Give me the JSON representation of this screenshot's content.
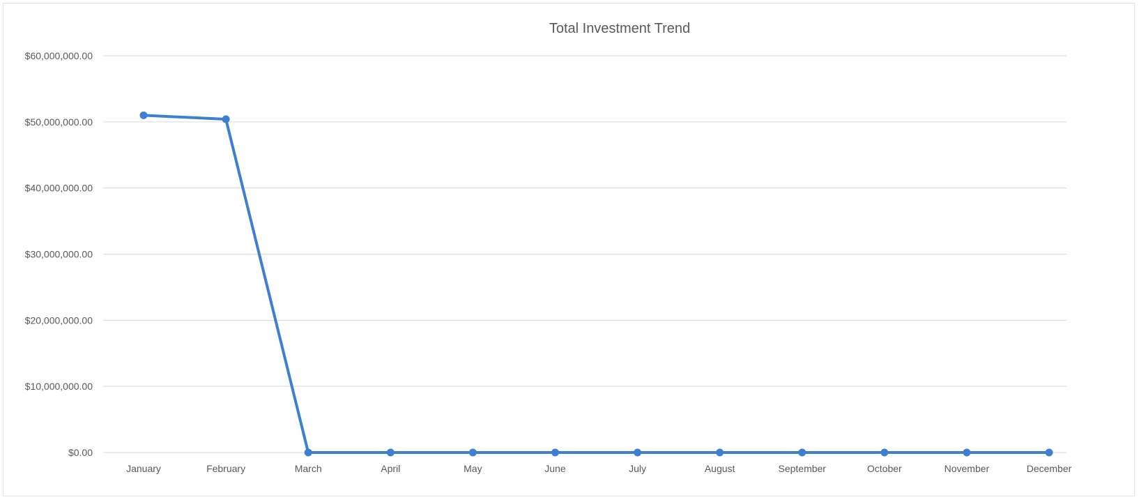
{
  "chart_data": {
    "type": "line",
    "title": "Total Investment Trend",
    "xlabel": "",
    "ylabel": "",
    "categories": [
      "January",
      "February",
      "March",
      "April",
      "May",
      "June",
      "July",
      "August",
      "September",
      "October",
      "November",
      "December"
    ],
    "series": [
      {
        "values": [
          51000000,
          50400000,
          0,
          0,
          0,
          0,
          0,
          0,
          0,
          0,
          0,
          0
        ]
      }
    ],
    "ylim": [
      0,
      60000000
    ],
    "yticks": [
      0,
      10000000,
      20000000,
      30000000,
      40000000,
      50000000,
      60000000
    ],
    "ytick_labels": [
      "$0.00",
      "$10,000,000.00",
      "$20,000,000.00",
      "$30,000,000.00",
      "$40,000,000.00",
      "$50,000,000.00",
      "$60,000,000.00"
    ],
    "grid": true,
    "legend": "none",
    "colors": {
      "series": "#3f7fd0",
      "grid": "#d9d9d9",
      "text": "#595959"
    }
  }
}
